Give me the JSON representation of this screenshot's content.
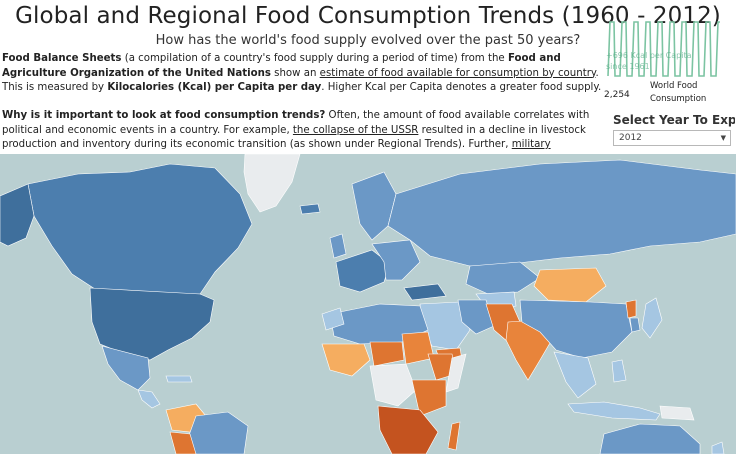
{
  "header": {
    "title": "Global and Regional Food Consumption Trends (1960 - 2012)",
    "subtitle": "How has the world's food supply evolved over the past 50 years?"
  },
  "intro": {
    "p1_b1": "Food Balance Sheets",
    "p1_t1": " (a compilation of a country's food supply during a period of time) from the ",
    "p1_b2": "Food and Agriculture Organization of the United Nations",
    "p1_t2": " show an ",
    "p1_link": "estimate of food available for consumption by country",
    "p1_t3": ". This is measured by ",
    "p1_b3": "Kilocalories (Kcal) per Capita per day",
    "p1_t4": ". Higher Kcal per Capita denotes a greater food supply.",
    "p2_b1": "Why is it important to look at food consumption trends?",
    "p2_t1": " Often, the amount of food available correlates with political and economic events in a country. For example, ",
    "p2_link1": "the collapse of the USSR",
    "p2_t2": " resulted in a decline in livestock production and inventory during its economic transition (as shown under Regional Trends). Further, ",
    "p2_link2": "military"
  },
  "sparkline": {
    "overlay_line1": "+696 Kcal per Capita",
    "overlay_line2": "since 1961",
    "value": "2,254",
    "label": "World Food Consumption",
    "color": "#7cc4a2"
  },
  "year_selector": {
    "label": "Select Year To Exp...",
    "value": "2012"
  },
  "map": {
    "ocean_color": "#b9cfd1",
    "legend": {
      "high": "#3f6f9c",
      "mid_high": "#6b98c6",
      "mid": "#a5c6e2",
      "neutral": "#e6e9ec",
      "low": "#f5ad60",
      "very_low": "#de7531",
      "lowest": "#c4531f"
    }
  }
}
